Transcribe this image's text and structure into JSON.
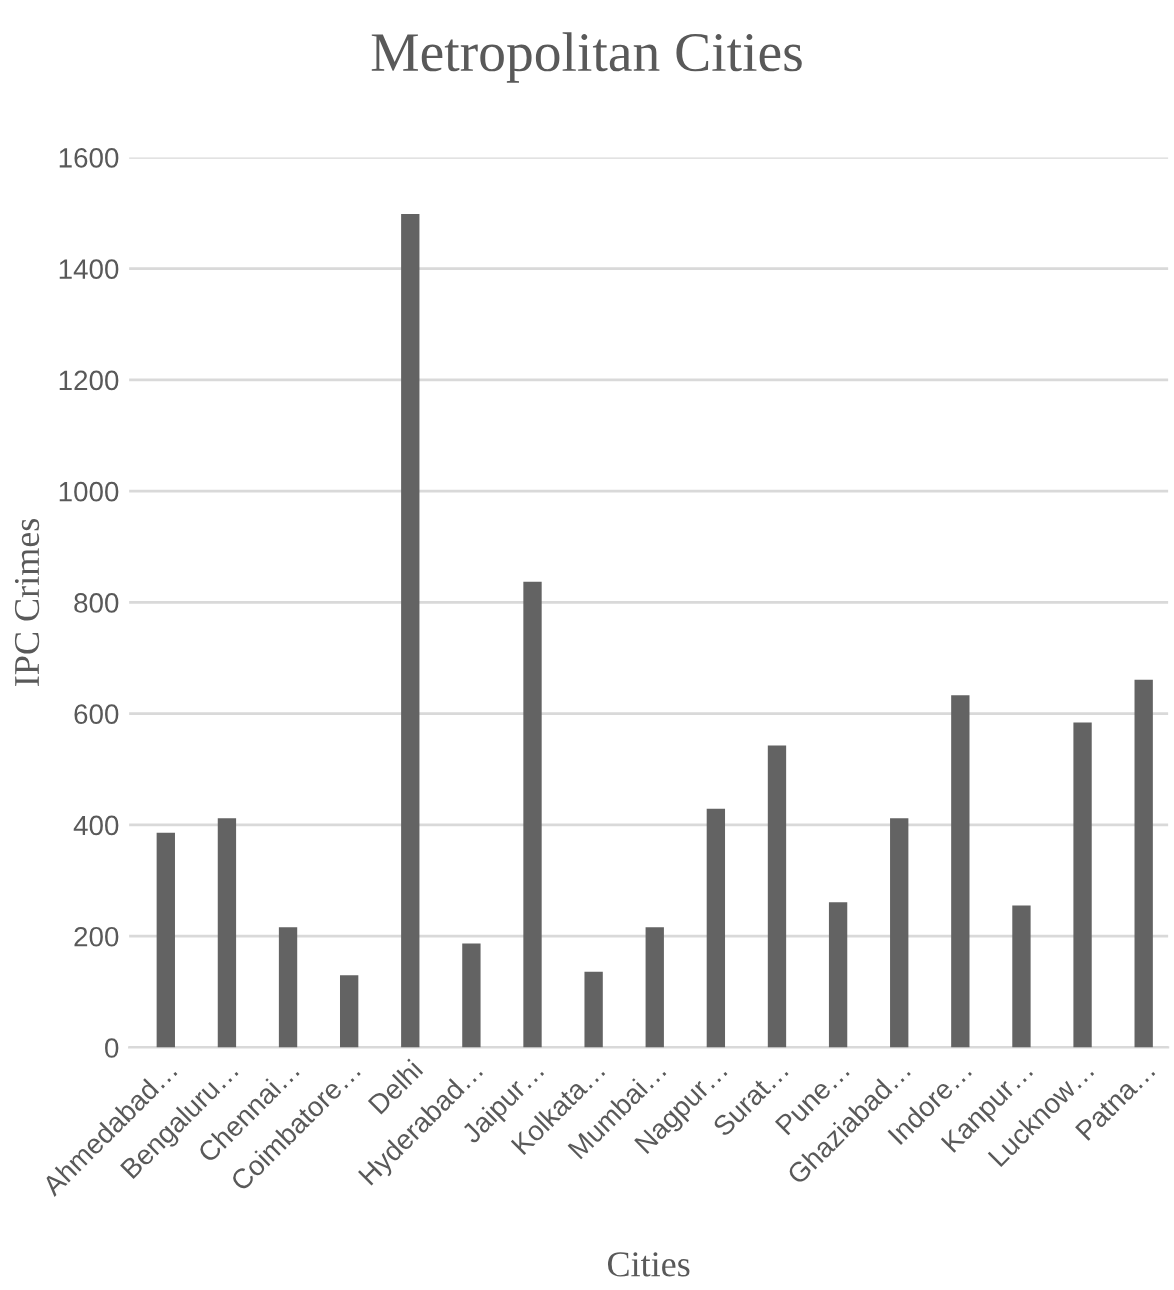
{
  "chart_data": {
    "type": "bar",
    "title": "Metropolitan Cities",
    "xlabel": "Cities",
    "ylabel": "IPC Crimes",
    "categories": [
      "Ahmedabad…",
      "Bengaluru…",
      "Chennai…",
      "Coimbatore…",
      "Delhi",
      "Hyderabad…",
      "Jaipur…",
      "Kolkata…",
      "Mumbai…",
      "Nagpur…",
      "Surat…",
      "Pune…",
      "Ghaziabad…",
      "Indore…",
      "Kanpur…",
      "Lucknow…",
      "Patna…"
    ],
    "values": [
      386,
      412,
      216,
      130,
      1498,
      187,
      837,
      136,
      216,
      429,
      543,
      261,
      412,
      633,
      255,
      584,
      661
    ],
    "color": "#636363",
    "ylim": [
      0,
      1600
    ],
    "yticks": [
      0,
      200,
      400,
      600,
      800,
      1000,
      1200,
      1400,
      1600
    ],
    "grid": "y"
  }
}
